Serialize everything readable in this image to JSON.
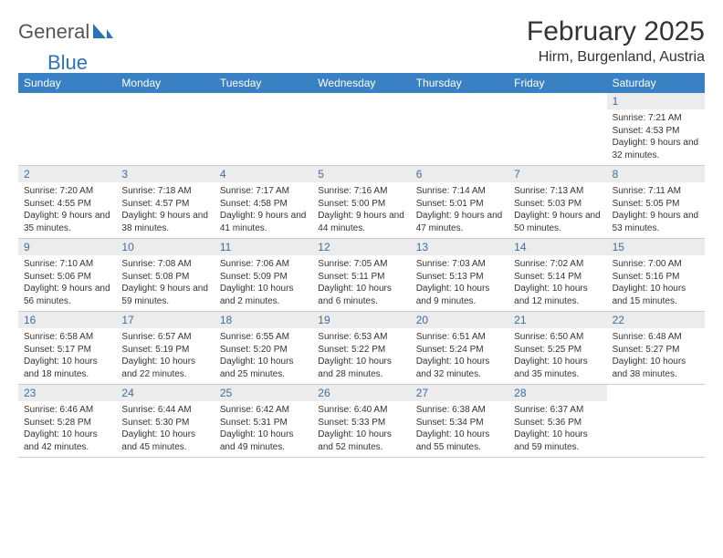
{
  "logo": {
    "text1": "General",
    "text2": "Blue",
    "text1_color": "#555555",
    "text2_color": "#2d72b8"
  },
  "title": "February 2025",
  "location": "Hirm, Burgenland, Austria",
  "colors": {
    "header_bg": "#3a81c4",
    "header_text": "#ffffff",
    "daynum_bg": "#ececec",
    "daynum_text": "#3a6fa5",
    "grid_line": "#cccccc",
    "body_text": "#333333",
    "page_bg": "#ffffff"
  },
  "typography": {
    "title_fontsize": 30,
    "location_fontsize": 16,
    "header_fontsize": 12,
    "daynum_fontsize": 12,
    "detail_fontsize": 10
  },
  "day_names": [
    "Sunday",
    "Monday",
    "Tuesday",
    "Wednesday",
    "Thursday",
    "Friday",
    "Saturday"
  ],
  "weeks": [
    [
      null,
      null,
      null,
      null,
      null,
      null,
      {
        "n": "1",
        "sunrise": "Sunrise: 7:21 AM",
        "sunset": "Sunset: 4:53 PM",
        "daylight": "Daylight: 9 hours and 32 minutes."
      }
    ],
    [
      {
        "n": "2",
        "sunrise": "Sunrise: 7:20 AM",
        "sunset": "Sunset: 4:55 PM",
        "daylight": "Daylight: 9 hours and 35 minutes."
      },
      {
        "n": "3",
        "sunrise": "Sunrise: 7:18 AM",
        "sunset": "Sunset: 4:57 PM",
        "daylight": "Daylight: 9 hours and 38 minutes."
      },
      {
        "n": "4",
        "sunrise": "Sunrise: 7:17 AM",
        "sunset": "Sunset: 4:58 PM",
        "daylight": "Daylight: 9 hours and 41 minutes."
      },
      {
        "n": "5",
        "sunrise": "Sunrise: 7:16 AM",
        "sunset": "Sunset: 5:00 PM",
        "daylight": "Daylight: 9 hours and 44 minutes."
      },
      {
        "n": "6",
        "sunrise": "Sunrise: 7:14 AM",
        "sunset": "Sunset: 5:01 PM",
        "daylight": "Daylight: 9 hours and 47 minutes."
      },
      {
        "n": "7",
        "sunrise": "Sunrise: 7:13 AM",
        "sunset": "Sunset: 5:03 PM",
        "daylight": "Daylight: 9 hours and 50 minutes."
      },
      {
        "n": "8",
        "sunrise": "Sunrise: 7:11 AM",
        "sunset": "Sunset: 5:05 PM",
        "daylight": "Daylight: 9 hours and 53 minutes."
      }
    ],
    [
      {
        "n": "9",
        "sunrise": "Sunrise: 7:10 AM",
        "sunset": "Sunset: 5:06 PM",
        "daylight": "Daylight: 9 hours and 56 minutes."
      },
      {
        "n": "10",
        "sunrise": "Sunrise: 7:08 AM",
        "sunset": "Sunset: 5:08 PM",
        "daylight": "Daylight: 9 hours and 59 minutes."
      },
      {
        "n": "11",
        "sunrise": "Sunrise: 7:06 AM",
        "sunset": "Sunset: 5:09 PM",
        "daylight": "Daylight: 10 hours and 2 minutes."
      },
      {
        "n": "12",
        "sunrise": "Sunrise: 7:05 AM",
        "sunset": "Sunset: 5:11 PM",
        "daylight": "Daylight: 10 hours and 6 minutes."
      },
      {
        "n": "13",
        "sunrise": "Sunrise: 7:03 AM",
        "sunset": "Sunset: 5:13 PM",
        "daylight": "Daylight: 10 hours and 9 minutes."
      },
      {
        "n": "14",
        "sunrise": "Sunrise: 7:02 AM",
        "sunset": "Sunset: 5:14 PM",
        "daylight": "Daylight: 10 hours and 12 minutes."
      },
      {
        "n": "15",
        "sunrise": "Sunrise: 7:00 AM",
        "sunset": "Sunset: 5:16 PM",
        "daylight": "Daylight: 10 hours and 15 minutes."
      }
    ],
    [
      {
        "n": "16",
        "sunrise": "Sunrise: 6:58 AM",
        "sunset": "Sunset: 5:17 PM",
        "daylight": "Daylight: 10 hours and 18 minutes."
      },
      {
        "n": "17",
        "sunrise": "Sunrise: 6:57 AM",
        "sunset": "Sunset: 5:19 PM",
        "daylight": "Daylight: 10 hours and 22 minutes."
      },
      {
        "n": "18",
        "sunrise": "Sunrise: 6:55 AM",
        "sunset": "Sunset: 5:20 PM",
        "daylight": "Daylight: 10 hours and 25 minutes."
      },
      {
        "n": "19",
        "sunrise": "Sunrise: 6:53 AM",
        "sunset": "Sunset: 5:22 PM",
        "daylight": "Daylight: 10 hours and 28 minutes."
      },
      {
        "n": "20",
        "sunrise": "Sunrise: 6:51 AM",
        "sunset": "Sunset: 5:24 PM",
        "daylight": "Daylight: 10 hours and 32 minutes."
      },
      {
        "n": "21",
        "sunrise": "Sunrise: 6:50 AM",
        "sunset": "Sunset: 5:25 PM",
        "daylight": "Daylight: 10 hours and 35 minutes."
      },
      {
        "n": "22",
        "sunrise": "Sunrise: 6:48 AM",
        "sunset": "Sunset: 5:27 PM",
        "daylight": "Daylight: 10 hours and 38 minutes."
      }
    ],
    [
      {
        "n": "23",
        "sunrise": "Sunrise: 6:46 AM",
        "sunset": "Sunset: 5:28 PM",
        "daylight": "Daylight: 10 hours and 42 minutes."
      },
      {
        "n": "24",
        "sunrise": "Sunrise: 6:44 AM",
        "sunset": "Sunset: 5:30 PM",
        "daylight": "Daylight: 10 hours and 45 minutes."
      },
      {
        "n": "25",
        "sunrise": "Sunrise: 6:42 AM",
        "sunset": "Sunset: 5:31 PM",
        "daylight": "Daylight: 10 hours and 49 minutes."
      },
      {
        "n": "26",
        "sunrise": "Sunrise: 6:40 AM",
        "sunset": "Sunset: 5:33 PM",
        "daylight": "Daylight: 10 hours and 52 minutes."
      },
      {
        "n": "27",
        "sunrise": "Sunrise: 6:38 AM",
        "sunset": "Sunset: 5:34 PM",
        "daylight": "Daylight: 10 hours and 55 minutes."
      },
      {
        "n": "28",
        "sunrise": "Sunrise: 6:37 AM",
        "sunset": "Sunset: 5:36 PM",
        "daylight": "Daylight: 10 hours and 59 minutes."
      },
      null
    ]
  ]
}
